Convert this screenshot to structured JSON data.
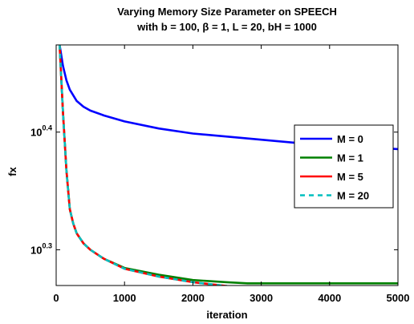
{
  "chart_data": {
    "type": "line",
    "title_line1": "Varying Memory Size Parameter on SPEECH",
    "title_line2": "with b = 100,  β = 1, L = 20, bH = 1000",
    "xlabel": "iteration",
    "ylabel": "fx",
    "x_scale": "linear",
    "y_scale": "log10",
    "xlim": [
      0,
      5000
    ],
    "ylim": [
      1.86,
      2.98
    ],
    "x_ticks": [
      {
        "value": 0,
        "label": "0"
      },
      {
        "value": 1000,
        "label": "1000"
      },
      {
        "value": 2000,
        "label": "2000"
      },
      {
        "value": 3000,
        "label": "3000"
      },
      {
        "value": 4000,
        "label": "4000"
      },
      {
        "value": 5000,
        "label": "5000"
      }
    ],
    "y_ticks": [
      {
        "value": 1.995,
        "base": "10",
        "exp": "0.3"
      },
      {
        "value": 2.512,
        "base": "10",
        "exp": "0.4"
      }
    ],
    "grid": false,
    "legend_position": "right",
    "series": [
      {
        "name": "M = 0",
        "color": "#0000ff",
        "dash": "none",
        "x": [
          50,
          100,
          150,
          200,
          300,
          400,
          500,
          700,
          1000,
          1500,
          2000,
          2500,
          3000,
          3500,
          4000,
          4500,
          5000
        ],
        "y": [
          2.98,
          2.86,
          2.78,
          2.73,
          2.67,
          2.64,
          2.62,
          2.595,
          2.565,
          2.53,
          2.505,
          2.49,
          2.475,
          2.46,
          2.45,
          2.44,
          2.43
        ]
      },
      {
        "name": "M = 1",
        "color": "#008000",
        "dash": "none",
        "x": [
          50,
          100,
          150,
          200,
          250,
          300,
          400,
          500,
          700,
          1000,
          1500,
          2000,
          2500,
          2800,
          3000,
          3500,
          4000,
          4500,
          5000
        ],
        "y": [
          2.98,
          2.61,
          2.33,
          2.16,
          2.1,
          2.06,
          2.02,
          1.995,
          1.96,
          1.925,
          1.9,
          1.88,
          1.872,
          1.868,
          1.868,
          1.868,
          1.868,
          1.868,
          1.868
        ]
      },
      {
        "name": "M = 5",
        "color": "#ff0000",
        "dash": "none",
        "x": [
          50,
          100,
          150,
          200,
          250,
          300,
          400,
          500,
          700,
          1000,
          1500,
          2000,
          2500,
          3000,
          3500,
          4000,
          4500,
          5000
        ],
        "y": [
          2.98,
          2.61,
          2.33,
          2.16,
          2.1,
          2.06,
          2.02,
          1.995,
          1.96,
          1.922,
          1.893,
          1.872,
          1.858,
          1.848,
          1.84,
          1.833,
          1.826,
          1.82
        ]
      },
      {
        "name": "M = 20",
        "color": "#00bfbf",
        "dash": "6,5",
        "x": [
          50,
          100,
          150,
          200,
          250,
          300,
          400,
          500,
          700,
          1000,
          1500,
          2000,
          2500,
          3000,
          3500,
          4000,
          4500,
          5000
        ],
        "y": [
          2.98,
          2.61,
          2.33,
          2.16,
          2.1,
          2.06,
          2.02,
          1.995,
          1.96,
          1.922,
          1.893,
          1.872,
          1.858,
          1.848,
          1.84,
          1.833,
          1.826,
          1.82
        ]
      }
    ]
  }
}
